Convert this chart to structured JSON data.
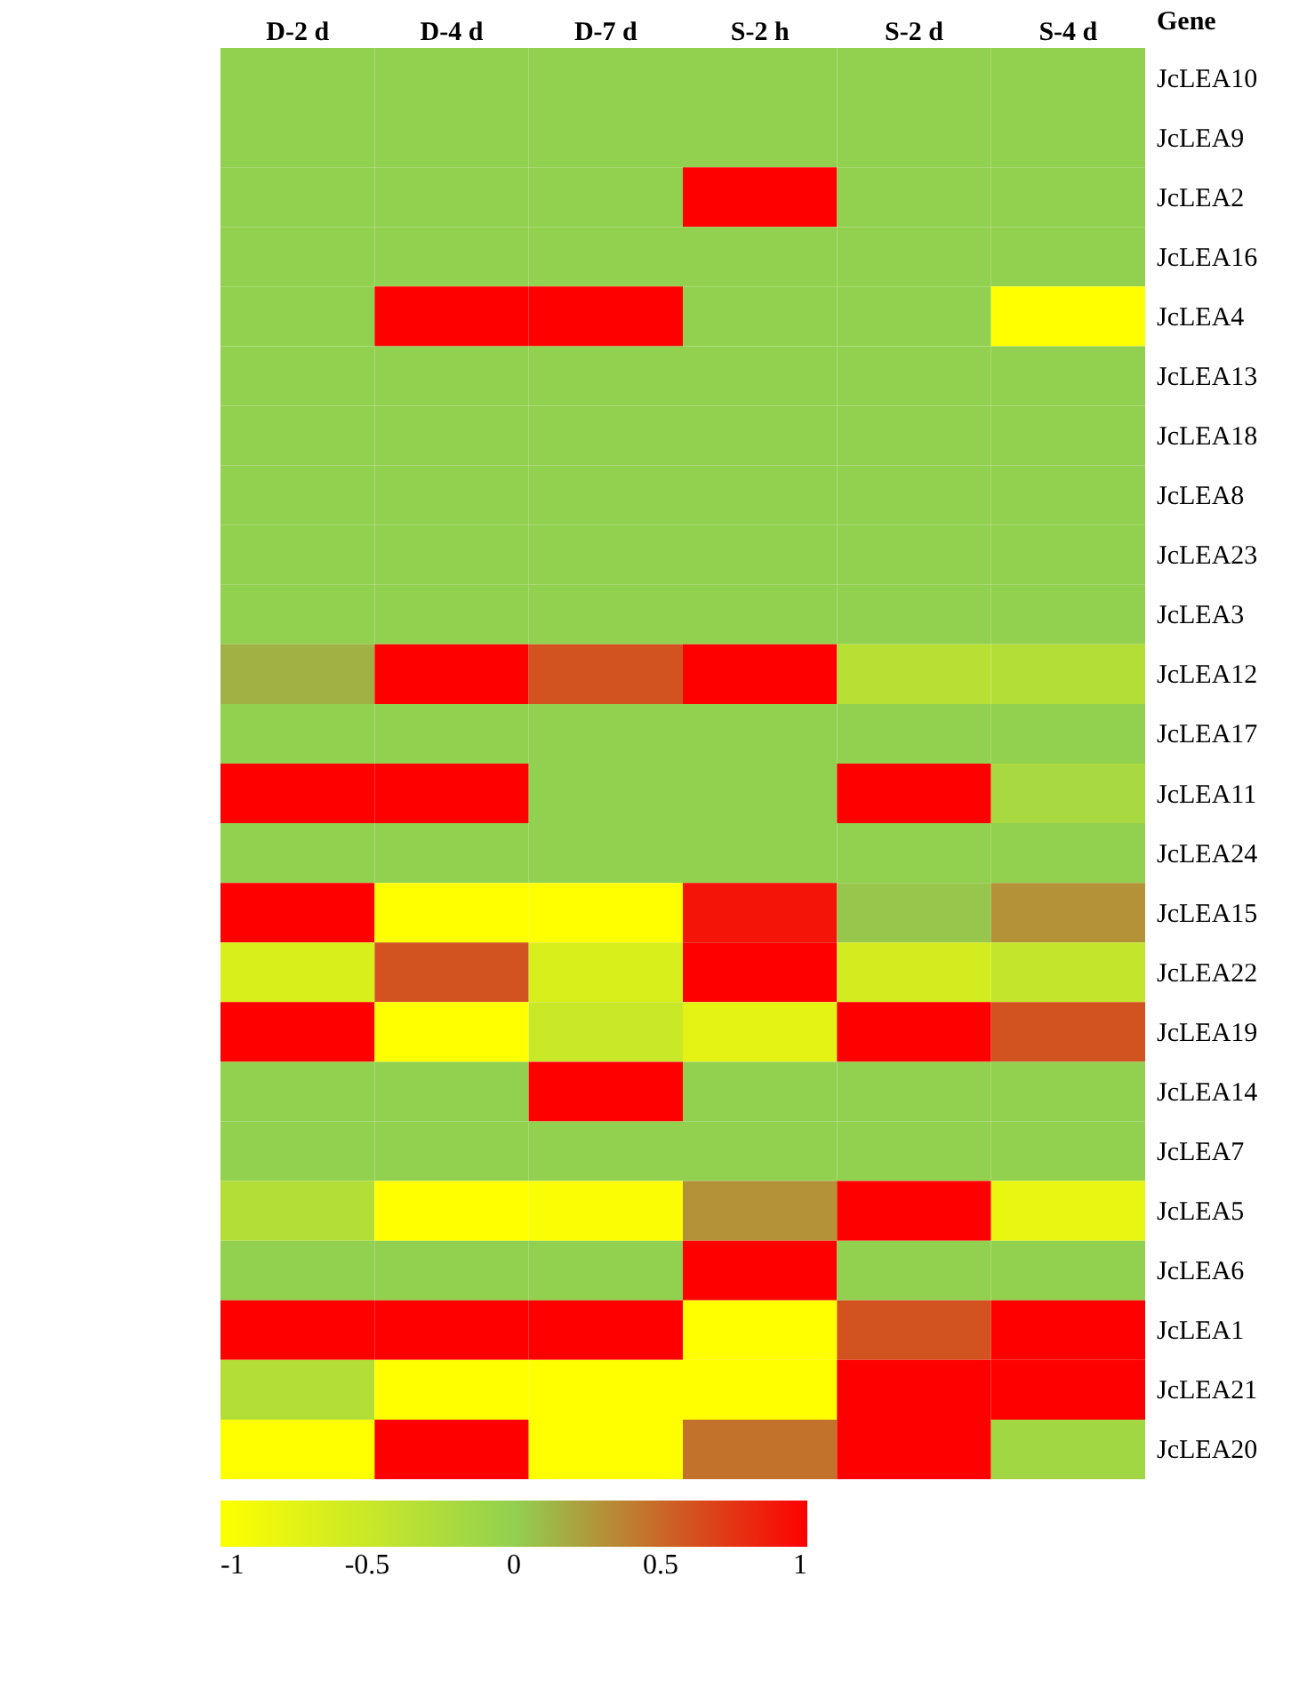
{
  "chart_data": {
    "type": "heatmap",
    "ylabel": "Gene",
    "categories": [
      "D-2 d",
      "D-4 d",
      "D-7 d",
      "S-2 h",
      "S-2 d",
      "S-4 d"
    ],
    "y_categories": [
      "JcLEA10",
      "JcLEA9",
      "JcLEA2",
      "JcLEA16",
      "JcLEA4",
      "JcLEA13",
      "JcLEA18",
      "JcLEA8",
      "JcLEA23",
      "JcLEA3",
      "JcLEA12",
      "JcLEA17",
      "JcLEA11",
      "JcLEA24",
      "JcLEA15",
      "JcLEA22",
      "JcLEA19",
      "JcLEA14",
      "JcLEA7",
      "JcLEA5",
      "JcLEA6",
      "JcLEA1",
      "JcLEA21",
      "JcLEA20"
    ],
    "cells": [
      [
        0,
        0,
        0,
        0,
        0,
        0
      ],
      [
        0,
        0,
        0,
        0,
        0,
        0
      ],
      [
        0,
        0,
        0,
        1,
        0,
        0
      ],
      [
        0,
        0,
        0,
        0,
        0,
        0
      ],
      [
        0,
        1,
        1,
        0,
        0,
        -1
      ],
      [
        0,
        0,
        0,
        0,
        0,
        0
      ],
      [
        0,
        0,
        0,
        0,
        0,
        0
      ],
      [
        0,
        0,
        0,
        0,
        0,
        0
      ],
      [
        0,
        0,
        0,
        0,
        0,
        0
      ],
      [
        0,
        0,
        0,
        0,
        0,
        0
      ],
      [
        0.15,
        1,
        0.6,
        1,
        -0.35,
        -0.3
      ],
      [
        0,
        0,
        0,
        0,
        0,
        0
      ],
      [
        1,
        1,
        0,
        0,
        1,
        -0.2
      ],
      [
        0,
        0,
        0,
        0,
        0,
        0
      ],
      [
        1,
        -1,
        -1,
        0.9,
        0.05,
        0.3
      ],
      [
        -0.65,
        0.6,
        -0.65,
        1,
        -0.6,
        -0.45
      ],
      [
        1,
        -1,
        -0.5,
        -0.75,
        1,
        0.6
      ],
      [
        0,
        0,
        1,
        0,
        0,
        0
      ],
      [
        0,
        0,
        0,
        0,
        0,
        0
      ],
      [
        -0.3,
        -1,
        -0.95,
        0.3,
        1,
        -0.8
      ],
      [
        0,
        0,
        0,
        1,
        0,
        0
      ],
      [
        1,
        1,
        1,
        -1,
        0.6,
        1
      ],
      [
        -0.3,
        -1,
        -1,
        -1,
        1,
        1
      ],
      [
        -1,
        1,
        -1,
        0.45,
        1,
        -0.15
      ]
    ],
    "clim": [
      -1,
      1
    ],
    "cticks": [
      -1,
      -0.5,
      0,
      0.5,
      1
    ],
    "grid": false
  }
}
